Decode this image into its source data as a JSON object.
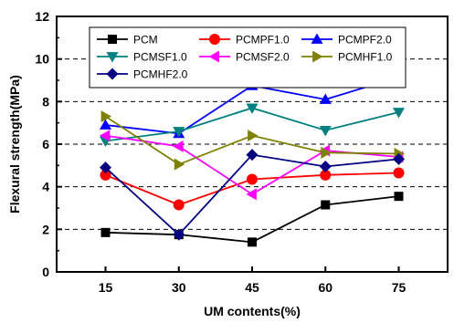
{
  "chart_data": {
    "type": "line",
    "title": "",
    "xlabel": "UM contents(%)",
    "ylabel": "Flexural strength(MPa)",
    "categories": [
      "15",
      "30",
      "45",
      "60",
      "75"
    ],
    "x": [
      15,
      30,
      45,
      60,
      75
    ],
    "xlim": [
      5,
      85
    ],
    "ylim": [
      0,
      12
    ],
    "yticks": [
      0,
      2,
      4,
      6,
      8,
      10,
      12
    ],
    "grid": "horizontal-dashed",
    "legend_position": "top",
    "series": [
      {
        "name": "PCM",
        "color": "#000000",
        "marker": "square",
        "values": [
          1.85,
          1.75,
          1.4,
          3.15,
          3.55
        ]
      },
      {
        "name": "PCMPF1.0",
        "color": "#ff0000",
        "marker": "circle",
        "values": [
          4.55,
          3.15,
          4.35,
          4.55,
          4.65
        ]
      },
      {
        "name": "PCMPF2.0",
        "color": "#0000ff",
        "marker": "triangle-up",
        "values": [
          6.9,
          6.5,
          8.75,
          8.1,
          9.15
        ]
      },
      {
        "name": "PCMSF1.0",
        "color": "#008080",
        "marker": "triangle-down",
        "values": [
          6.15,
          6.6,
          7.7,
          6.65,
          7.5
        ]
      },
      {
        "name": "PCMSF2.0",
        "color": "#ff00ff",
        "marker": "triangle-left",
        "values": [
          6.4,
          5.9,
          3.65,
          5.7,
          5.4
        ]
      },
      {
        "name": "PCMHF1.0",
        "color": "#808000",
        "marker": "triangle-right",
        "values": [
          7.3,
          5.05,
          6.4,
          5.6,
          5.55
        ]
      },
      {
        "name": "PCMHF2.0",
        "color": "#000080",
        "marker": "diamond",
        "values": [
          4.9,
          1.75,
          5.5,
          4.95,
          5.3
        ]
      }
    ]
  }
}
